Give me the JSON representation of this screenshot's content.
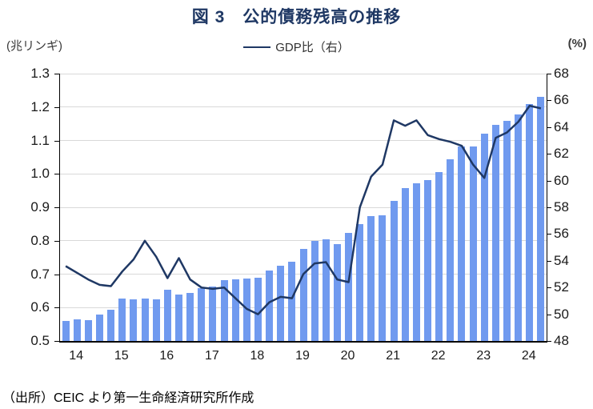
{
  "title": "図 3　公的債務残高の推移",
  "legend": {
    "label": "GDP比（右）"
  },
  "left_axis_unit": "(兆リンギ)",
  "right_axis_unit": "(%)",
  "source": "（出所）CEIC より第一生命経済研究所作成",
  "colors": {
    "title": "#1f3864",
    "line": "#1f3864",
    "bar": "#709aef",
    "gridline": "#d9d9d9",
    "axis": "#000000"
  },
  "chart_data": {
    "type": "bar",
    "subtype": "bar+line dual axis, quarterly",
    "categories": [
      "2013Q4",
      "2014Q1",
      "2014Q2",
      "2014Q3",
      "2014Q4",
      "2015Q1",
      "2015Q2",
      "2015Q3",
      "2015Q4",
      "2016Q1",
      "2016Q2",
      "2016Q3",
      "2016Q4",
      "2017Q1",
      "2017Q2",
      "2017Q3",
      "2017Q4",
      "2018Q1",
      "2018Q2",
      "2018Q3",
      "2018Q4",
      "2019Q1",
      "2019Q2",
      "2019Q3",
      "2019Q4",
      "2020Q1",
      "2020Q2",
      "2020Q3",
      "2020Q4",
      "2021Q1",
      "2021Q2",
      "2021Q3",
      "2021Q4",
      "2022Q1",
      "2022Q2",
      "2022Q3",
      "2022Q4",
      "2023Q1",
      "2023Q2",
      "2023Q3",
      "2023Q4",
      "2024Q1",
      "2024Q2"
    ],
    "series": [
      {
        "name": "公的債務残高（兆リンギ）",
        "type": "bar",
        "axis": "left",
        "values": [
          0.56,
          0.565,
          0.563,
          0.58,
          0.593,
          0.626,
          0.624,
          0.627,
          0.624,
          0.653,
          0.64,
          0.644,
          0.657,
          0.663,
          0.681,
          0.685,
          0.686,
          0.69,
          0.712,
          0.725,
          0.737,
          0.775,
          0.799,
          0.805,
          0.791,
          0.823,
          0.85,
          0.874,
          0.877,
          0.919,
          0.957,
          0.971,
          0.981,
          1.005,
          1.044,
          1.081,
          1.082,
          1.12,
          1.146,
          1.159,
          1.178,
          1.21,
          1.231
        ]
      },
      {
        "name": "GDP比（右）",
        "type": "line",
        "axis": "right",
        "values": [
          53.6,
          53.1,
          52.6,
          52.2,
          52.1,
          53.2,
          54.1,
          55.5,
          54.3,
          52.7,
          54.2,
          52.6,
          52.0,
          51.9,
          52.0,
          51.2,
          50.4,
          50.0,
          50.9,
          51.3,
          51.2,
          53.0,
          53.8,
          53.9,
          52.6,
          52.4,
          58.0,
          60.3,
          61.2,
          64.5,
          64.1,
          64.5,
          63.4,
          63.1,
          62.9,
          62.6,
          61.2,
          60.2,
          63.2,
          63.6,
          64.4,
          65.6,
          65.4
        ]
      }
    ],
    "left_axis": {
      "min": 0.5,
      "max": 1.3,
      "step": 0.1,
      "tick_labels": [
        "0.5",
        "0.6",
        "0.7",
        "0.8",
        "0.9",
        "1.0",
        "1.1",
        "1.2",
        "1.3"
      ]
    },
    "right_axis": {
      "min": 48,
      "max": 68,
      "step": 2,
      "tick_labels": [
        "48",
        "50",
        "52",
        "54",
        "56",
        "58",
        "60",
        "62",
        "64",
        "66",
        "68"
      ]
    },
    "x_ticks": [
      {
        "label": "14",
        "index": 1
      },
      {
        "label": "15",
        "index": 5
      },
      {
        "label": "16",
        "index": 9
      },
      {
        "label": "17",
        "index": 13
      },
      {
        "label": "18",
        "index": 17
      },
      {
        "label": "19",
        "index": 21
      },
      {
        "label": "20",
        "index": 25
      },
      {
        "label": "21",
        "index": 29
      },
      {
        "label": "22",
        "index": 33
      },
      {
        "label": "23",
        "index": 37
      },
      {
        "label": "24",
        "index": 41
      }
    ],
    "grid": "horizontal, at left-axis steps",
    "legend_position": "top center"
  }
}
